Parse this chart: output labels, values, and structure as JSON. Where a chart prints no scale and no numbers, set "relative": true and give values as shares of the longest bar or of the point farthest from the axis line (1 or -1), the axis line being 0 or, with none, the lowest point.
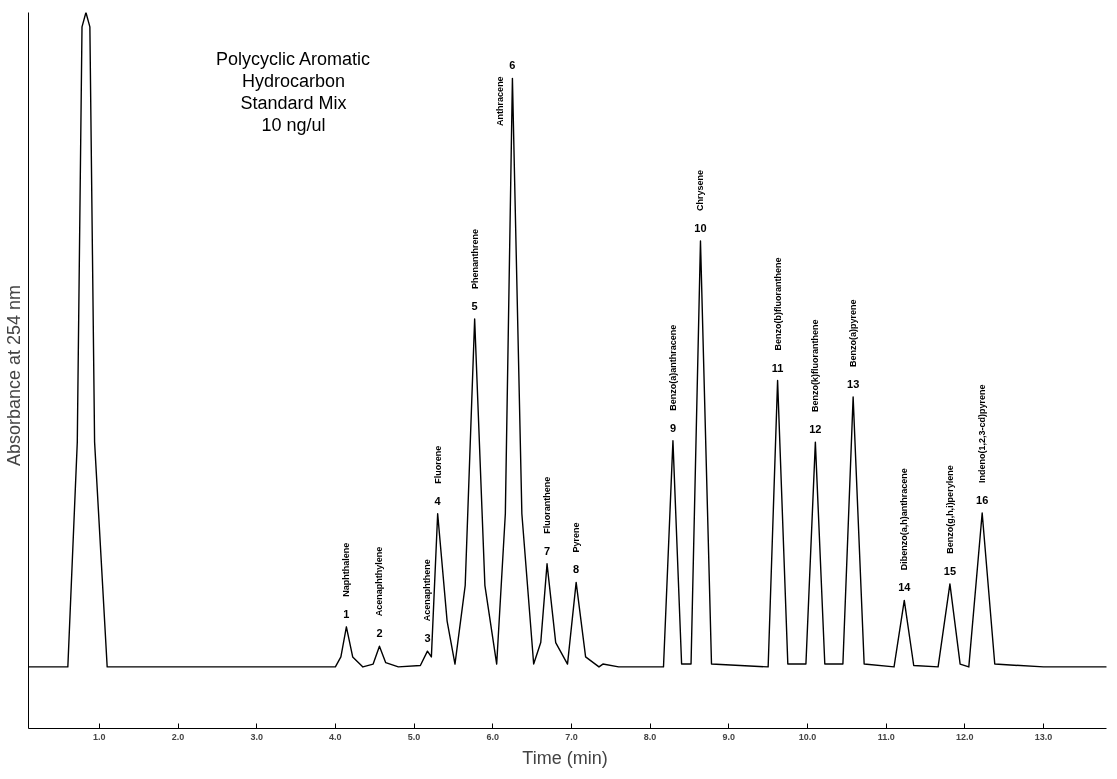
{
  "chart_data": {
    "type": "line",
    "relative": true,
    "title": "Polycyclic Aromatic\nHydrocarbon\nStandard Mix\n10 ng/ul",
    "xlabel": "Time  (min)",
    "ylabel": "Absorbance  at  254 nm",
    "color": "#000000",
    "grid": false,
    "marker": "none",
    "line_style": "solid",
    "x": [
      0.1,
      0.6,
      0.72,
      0.78,
      0.83,
      0.88,
      0.94,
      1.1,
      4.0,
      4.07,
      4.14,
      4.22,
      4.35,
      4.48,
      4.56,
      4.64,
      4.8,
      5.08,
      5.17,
      5.22,
      5.3,
      5.42,
      5.52,
      5.65,
      5.77,
      5.9,
      6.05,
      6.16,
      6.25,
      6.37,
      6.52,
      6.61,
      6.69,
      6.8,
      6.95,
      7.06,
      7.18,
      7.35,
      7.4,
      7.6,
      8.17,
      8.29,
      8.4,
      8.52,
      8.64,
      8.78,
      9.5,
      9.62,
      9.75,
      9.98,
      10.1,
      10.22,
      10.45,
      10.58,
      10.72,
      11.1,
      11.23,
      11.35,
      11.66,
      11.81,
      11.94,
      12.05,
      12.22,
      12.38,
      13.0,
      13.8
    ],
    "values": [
      0.086,
      0.086,
      0.4,
      0.98,
      1.0,
      0.98,
      0.4,
      0.086,
      0.086,
      0.1,
      0.142,
      0.1,
      0.086,
      0.09,
      0.115,
      0.092,
      0.086,
      0.088,
      0.108,
      0.1,
      0.3,
      0.15,
      0.09,
      0.2,
      0.572,
      0.2,
      0.09,
      0.3,
      0.908,
      0.3,
      0.09,
      0.12,
      0.23,
      0.12,
      0.09,
      0.204,
      0.1,
      0.086,
      0.09,
      0.086,
      0.086,
      0.402,
      0.09,
      0.09,
      0.681,
      0.09,
      0.086,
      0.486,
      0.09,
      0.09,
      0.4,
      0.09,
      0.09,
      0.463,
      0.09,
      0.086,
      0.179,
      0.088,
      0.086,
      0.202,
      0.09,
      0.086,
      0.301,
      0.09,
      0.086,
      0.086
    ],
    "xlim": [
      0.1,
      13.8
    ],
    "xticks": [
      {
        "value": 1,
        "label": "1.0"
      },
      {
        "value": 2,
        "label": "2.0"
      },
      {
        "value": 3,
        "label": "3.0"
      },
      {
        "value": 4,
        "label": "4.0"
      },
      {
        "value": 5,
        "label": "5.0"
      },
      {
        "value": 6,
        "label": "6.0"
      },
      {
        "value": 7,
        "label": "7.0"
      },
      {
        "value": 8,
        "label": "8.0"
      },
      {
        "value": 9,
        "label": "9.0"
      },
      {
        "value": 10,
        "label": "10.0"
      },
      {
        "value": 11,
        "label": "11.0"
      },
      {
        "value": 12,
        "label": "12.0"
      },
      {
        "value": 13,
        "label": "13.0"
      }
    ],
    "annotations": [
      {
        "text": "1",
        "x": 4.14,
        "y": 0.142
      },
      "Naphthalene",
      {
        "text": "2",
        "x": 4.56,
        "y": 0.115
      },
      "Acenaphthylene",
      {
        "text": "3",
        "x": 5.17,
        "y": 0.108
      },
      "Acenaphthene",
      {
        "text": "4",
        "x": 5.3,
        "y": 0.3
      },
      "Fluorene",
      {
        "text": "5",
        "x": 5.77,
        "y": 0.572
      },
      "Phenanthrene",
      {
        "text": "6",
        "x": 6.25,
        "y": 0.908
      },
      "Anthracene",
      {
        "text": "7",
        "x": 6.69,
        "y": 0.23
      },
      "Fluoranthene",
      {
        "text": "8",
        "x": 7.06,
        "y": 0.204
      },
      "Pyrene",
      {
        "text": "9",
        "x": 8.29,
        "y": 0.402
      },
      "Benzo(a)anthracene",
      {
        "text": "10",
        "x": 8.64,
        "y": 0.681
      },
      "Chrysene",
      {
        "text": "11",
        "x": 9.62,
        "y": 0.486
      },
      "Benzo(b)fluoranthene",
      {
        "text": "12",
        "x": 10.1,
        "y": 0.4
      },
      "Benzo(k)fluoranthene",
      {
        "text": "13",
        "x": 10.58,
        "y": 0.463
      },
      "Benzo(a)pyrene",
      {
        "text": "14",
        "x": 11.23,
        "y": 0.179
      },
      "Dibenzo(a,h)anthracene",
      {
        "text": "15",
        "x": 11.81,
        "y": 0.202
      },
      "Benzo(g,h,i)perylene",
      {
        "text": "16",
        "x": 12.22,
        "y": 0.301
      },
      "Indeno(1,2,3-cd)pyrene"
    ]
  }
}
